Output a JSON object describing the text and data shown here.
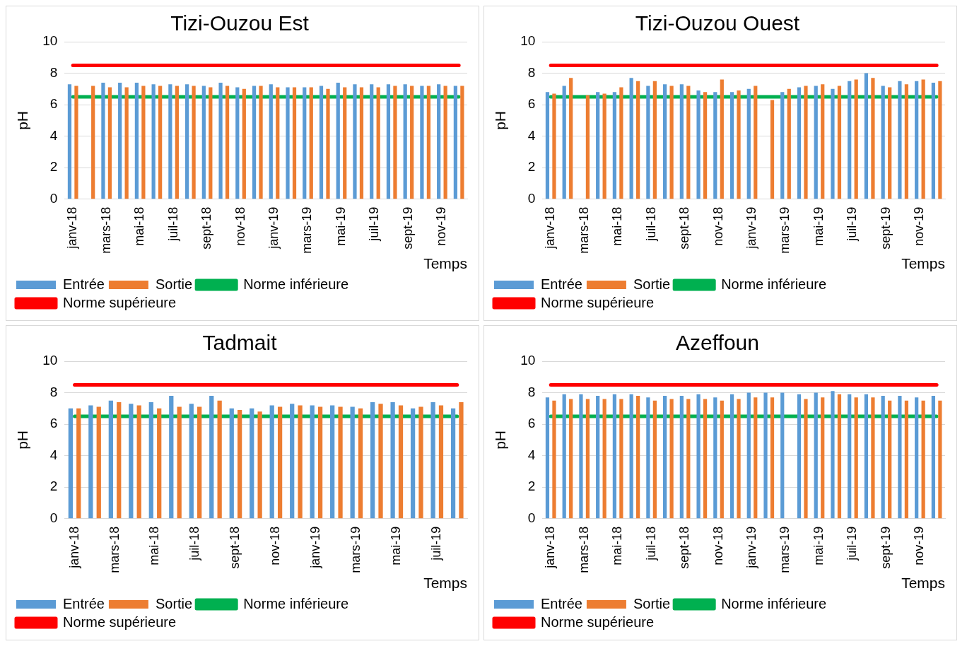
{
  "chart_data": [
    {
      "type": "bar",
      "title": "Tizi-Ouzou Est",
      "xlabel": "Temps",
      "ylabel": "pH",
      "ylim": [
        0,
        10
      ],
      "yticks": [
        0,
        2,
        4,
        6,
        8,
        10
      ],
      "grid": "y",
      "legend": "bottom",
      "marker": "none",
      "categories": [
        "janv-18",
        null,
        "mars-18",
        null,
        "mai-18",
        null,
        "juil-18",
        null,
        "sept-18",
        null,
        "nov-18",
        null,
        "janv-19",
        null,
        "mars-19",
        null,
        "mai-19",
        null,
        "juil-19",
        null,
        "sept-19",
        null,
        "nov-19",
        null
      ],
      "series": [
        {
          "name": "Entrée",
          "color": "#5b9bd5",
          "values": [
            7.3,
            null,
            7.4,
            7.4,
            7.4,
            7.3,
            7.3,
            7.3,
            7.2,
            7.4,
            7.1,
            7.2,
            7.3,
            7.1,
            7.1,
            7.2,
            7.4,
            7.3,
            7.3,
            7.3,
            7.3,
            7.2,
            7.3,
            7.2
          ]
        },
        {
          "name": "Sortie",
          "color": "#ed7d31",
          "values": [
            7.2,
            7.2,
            7.1,
            7.1,
            7.2,
            7.2,
            7.2,
            7.2,
            7.1,
            7.2,
            7.0,
            7.2,
            7.1,
            7.1,
            7.1,
            7.0,
            7.1,
            7.1,
            7.1,
            7.2,
            7.2,
            7.2,
            7.2,
            7.2
          ]
        },
        {
          "name": "Norme inférieure",
          "type": "line",
          "color": "#00b050",
          "values": [
            6.5,
            6.5,
            6.5,
            6.5,
            6.5,
            6.5,
            6.5,
            6.5,
            6.5,
            6.5,
            6.5,
            6.5,
            6.5,
            6.5,
            6.5,
            6.5,
            6.5,
            6.5,
            6.5,
            6.5,
            6.5,
            6.5,
            6.5,
            6.5
          ]
        },
        {
          "name": "Norme supérieure",
          "type": "line",
          "color": "#ff0000",
          "values": [
            8.5,
            8.5,
            8.5,
            8.5,
            8.5,
            8.5,
            8.5,
            8.5,
            8.5,
            8.5,
            8.5,
            8.5,
            8.5,
            8.5,
            8.5,
            8.5,
            8.5,
            8.5,
            8.5,
            8.5,
            8.5,
            8.5,
            8.5,
            8.5
          ]
        }
      ]
    },
    {
      "type": "bar",
      "title": "Tizi-Ouzou Ouest",
      "xlabel": "Temps",
      "ylabel": "pH",
      "ylim": [
        0,
        10
      ],
      "yticks": [
        0,
        2,
        4,
        6,
        8,
        10
      ],
      "grid": "y",
      "legend": "bottom",
      "marker": "none",
      "categories": [
        "janv-18",
        null,
        "mars-18",
        null,
        "mai-18",
        null,
        "juil-18",
        null,
        "sept-18",
        null,
        "nov-18",
        null,
        "janv-19",
        null,
        "mars-19",
        null,
        "mai-19",
        null,
        "juil-19",
        null,
        "sept-19",
        null,
        "nov-19",
        null
      ],
      "series": [
        {
          "name": "Entrée",
          "color": "#5b9bd5",
          "values": [
            6.8,
            7.2,
            null,
            6.8,
            6.8,
            7.7,
            7.2,
            7.3,
            7.3,
            6.9,
            6.8,
            6.8,
            7.0,
            null,
            6.8,
            7.1,
            7.2,
            7.0,
            7.5,
            8.0,
            7.2,
            7.5,
            7.5,
            7.4
          ]
        },
        {
          "name": "Sortie",
          "color": "#ed7d31",
          "values": [
            6.7,
            7.7,
            6.6,
            6.7,
            7.1,
            7.5,
            7.5,
            7.2,
            7.2,
            6.8,
            7.6,
            6.9,
            7.2,
            6.3,
            7.0,
            7.2,
            7.3,
            7.2,
            7.6,
            7.7,
            7.1,
            7.3,
            7.6,
            7.5
          ]
        },
        {
          "name": "Norme inférieure",
          "type": "line",
          "color": "#00b050",
          "values": [
            6.5,
            6.5,
            6.5,
            6.5,
            6.5,
            6.5,
            6.5,
            6.5,
            6.5,
            6.5,
            6.5,
            6.5,
            6.5,
            6.5,
            6.5,
            6.5,
            6.5,
            6.5,
            6.5,
            6.5,
            6.5,
            6.5,
            6.5,
            6.5
          ]
        },
        {
          "name": "Norme supérieure",
          "type": "line",
          "color": "#ff0000",
          "values": [
            8.5,
            8.5,
            8.5,
            8.5,
            8.5,
            8.5,
            8.5,
            8.5,
            8.5,
            8.5,
            8.5,
            8.5,
            8.5,
            8.5,
            8.5,
            8.5,
            8.5,
            8.5,
            8.5,
            8.5,
            8.5,
            8.5,
            8.5,
            8.5
          ]
        }
      ]
    },
    {
      "type": "bar",
      "title": "Tadmait",
      "xlabel": "Temps",
      "ylabel": "pH",
      "ylim": [
        0,
        10
      ],
      "yticks": [
        0,
        2,
        4,
        6,
        8,
        10
      ],
      "grid": "y",
      "legend": "bottom",
      "marker": "none",
      "categories": [
        "janv-18",
        null,
        "mars-18",
        null,
        "mai-18",
        null,
        "juil-18",
        null,
        "sept-18",
        null,
        "nov-18",
        null,
        "janv-19",
        null,
        "mars-19",
        null,
        "mai-19",
        null,
        "juil-19",
        null
      ],
      "series": [
        {
          "name": "Entrée",
          "color": "#5b9bd5",
          "values": [
            7.0,
            7.2,
            7.5,
            7.3,
            7.4,
            7.8,
            7.3,
            7.8,
            7.0,
            7.0,
            7.2,
            7.3,
            7.2,
            7.2,
            7.1,
            7.4,
            7.4,
            7.0,
            7.4,
            7.0
          ]
        },
        {
          "name": "Sortie",
          "color": "#ed7d31",
          "values": [
            7.0,
            7.1,
            7.4,
            7.2,
            7.0,
            7.1,
            7.1,
            7.5,
            6.9,
            6.8,
            7.1,
            7.2,
            7.1,
            7.1,
            7.0,
            7.3,
            7.2,
            7.1,
            7.2,
            7.4
          ]
        },
        {
          "name": "Norme inférieure",
          "type": "line",
          "color": "#00b050",
          "values": [
            6.5,
            6.5,
            6.5,
            6.5,
            6.5,
            6.5,
            6.5,
            6.5,
            6.5,
            6.5,
            6.5,
            6.5,
            6.5,
            6.5,
            6.5,
            6.5,
            6.5,
            6.5,
            6.5,
            6.5
          ]
        },
        {
          "name": "Norme supérieure",
          "type": "line",
          "color": "#ff0000",
          "values": [
            8.5,
            8.5,
            8.5,
            8.5,
            8.5,
            8.5,
            8.5,
            8.5,
            8.5,
            8.5,
            8.5,
            8.5,
            8.5,
            8.5,
            8.5,
            8.5,
            8.5,
            8.5,
            8.5,
            8.5
          ]
        }
      ]
    },
    {
      "type": "bar",
      "title": "Azeffoun",
      "xlabel": "Temps",
      "ylabel": "pH",
      "ylim": [
        0,
        10
      ],
      "yticks": [
        0,
        2,
        4,
        6,
        8,
        10
      ],
      "grid": "y",
      "legend": "bottom",
      "marker": "none",
      "categories": [
        "janv-18",
        null,
        "mars-18",
        null,
        "mai-18",
        null,
        "juil-18",
        null,
        "sept-18",
        null,
        "nov-18",
        null,
        "janv-19",
        null,
        "mars-19",
        null,
        "mai-19",
        null,
        "juil-19",
        null,
        "sept-19",
        null,
        "nov-19",
        null
      ],
      "series": [
        {
          "name": "Entrée",
          "color": "#5b9bd5",
          "values": [
            7.7,
            7.9,
            7.9,
            7.8,
            7.9,
            7.9,
            7.7,
            7.8,
            7.8,
            7.9,
            7.7,
            7.9,
            8.0,
            8.0,
            8.0,
            7.9,
            8.0,
            8.1,
            7.9,
            7.9,
            7.8,
            7.8,
            7.7,
            7.8
          ]
        },
        {
          "name": "Sortie",
          "color": "#ed7d31",
          "values": [
            7.5,
            7.6,
            7.6,
            7.6,
            7.6,
            7.8,
            7.5,
            7.6,
            7.6,
            7.6,
            7.5,
            7.6,
            7.7,
            7.7,
            null,
            7.6,
            7.7,
            7.9,
            7.7,
            7.7,
            7.5,
            7.5,
            7.5,
            7.5
          ]
        },
        {
          "name": "Norme inférieure",
          "type": "line",
          "color": "#00b050",
          "values": [
            6.5,
            6.5,
            6.5,
            6.5,
            6.5,
            6.5,
            6.5,
            6.5,
            6.5,
            6.5,
            6.5,
            6.5,
            6.5,
            6.5,
            6.5,
            6.5,
            6.5,
            6.5,
            6.5,
            6.5,
            6.5,
            6.5,
            6.5,
            6.5
          ]
        },
        {
          "name": "Norme supérieure",
          "type": "line",
          "color": "#ff0000",
          "values": [
            8.5,
            8.5,
            8.5,
            8.5,
            8.5,
            8.5,
            8.5,
            8.5,
            8.5,
            8.5,
            8.5,
            8.5,
            8.5,
            8.5,
            8.5,
            8.5,
            8.5,
            8.5,
            8.5,
            8.5,
            8.5,
            8.5,
            8.5,
            8.5
          ]
        }
      ]
    }
  ]
}
